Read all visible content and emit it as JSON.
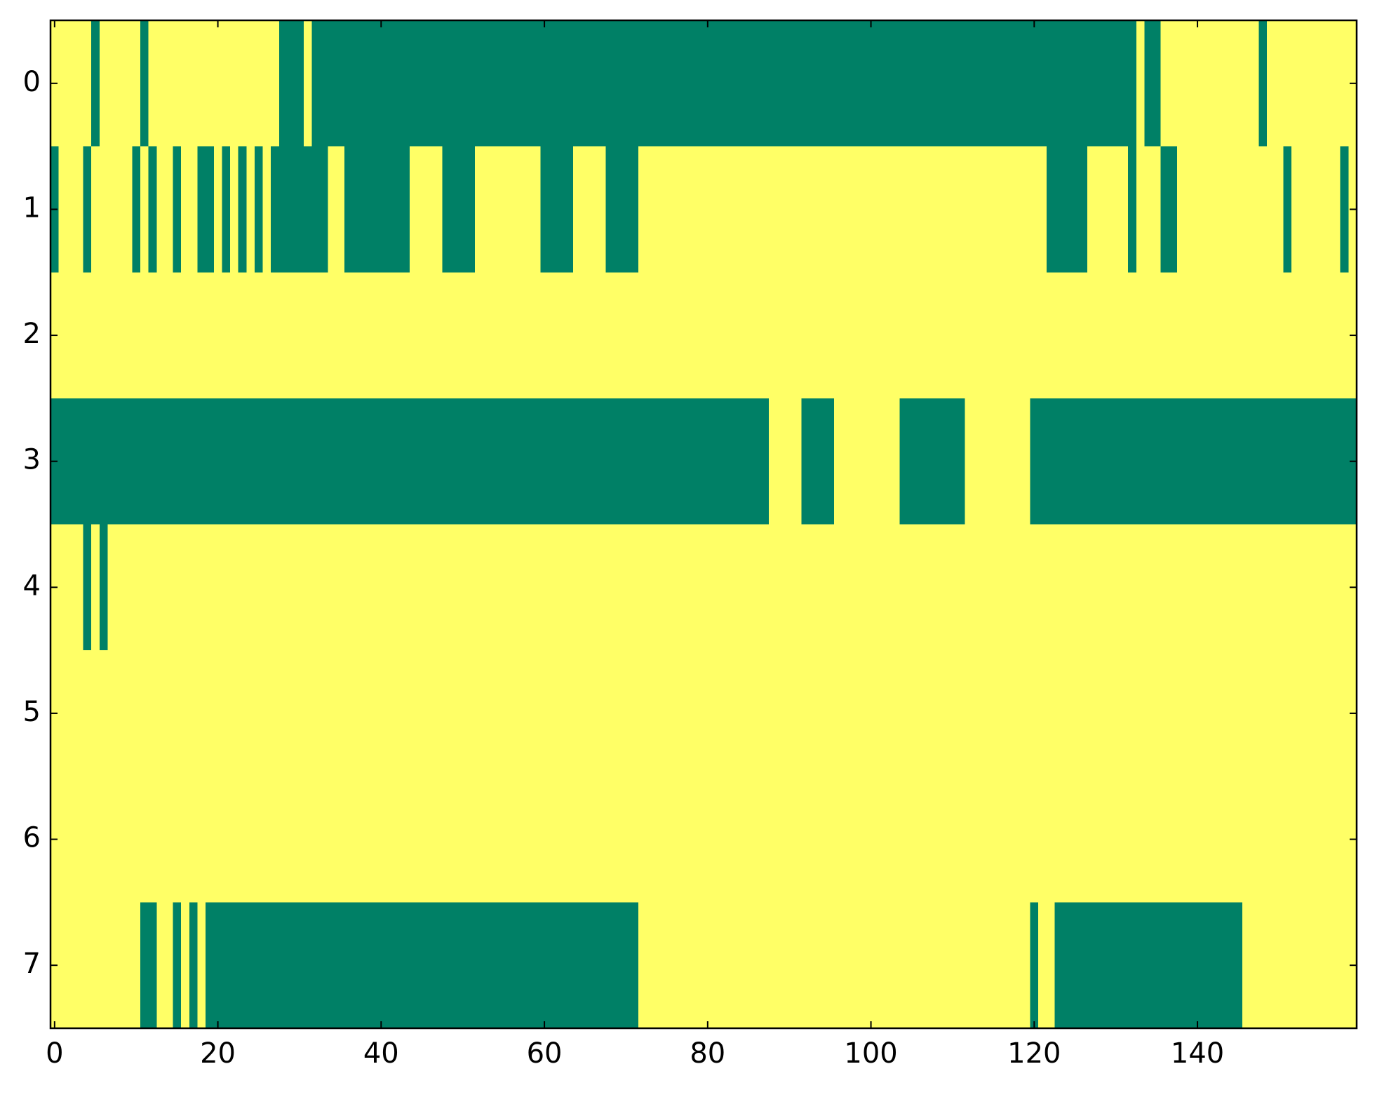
{
  "chart_data": {
    "type": "heatmap",
    "colors": [
      "#008066",
      "#ffff66"
    ],
    "xlim": [
      -0.5,
      159.5
    ],
    "ylim": [
      7.5,
      -0.5
    ],
    "xticks": [
      0,
      20,
      40,
      60,
      80,
      100,
      120,
      140
    ],
    "yticks": [
      0,
      1,
      2,
      3,
      4,
      5,
      6,
      7
    ],
    "values": [
      [
        1,
        1,
        1,
        1,
        1,
        0,
        1,
        1,
        1,
        1,
        1,
        0,
        1,
        1,
        1,
        1,
        1,
        1,
        1,
        1,
        1,
        1,
        1,
        1,
        1,
        1,
        1,
        1,
        0,
        0,
        0,
        1,
        0,
        0,
        0,
        0,
        0,
        0,
        0,
        0,
        0,
        0,
        0,
        0,
        0,
        0,
        0,
        0,
        0,
        0,
        0,
        0,
        0,
        0,
        0,
        0,
        0,
        0,
        0,
        0,
        0,
        0,
        0,
        0,
        0,
        0,
        0,
        0,
        0,
        0,
        0,
        0,
        0,
        0,
        0,
        0,
        0,
        0,
        0,
        0,
        0,
        0,
        0,
        0,
        0,
        0,
        0,
        0,
        0,
        0,
        0,
        0,
        0,
        0,
        0,
        0,
        0,
        0,
        0,
        0,
        0,
        0,
        0,
        0,
        0,
        0,
        0,
        0,
        0,
        0,
        0,
        0,
        0,
        0,
        0,
        0,
        0,
        0,
        0,
        0,
        0,
        0,
        0,
        0,
        0,
        0,
        0,
        0,
        0,
        0,
        0,
        0,
        0,
        1,
        0,
        0,
        1,
        1,
        1,
        1,
        1,
        1,
        1,
        1,
        1,
        1,
        1,
        1,
        0,
        1,
        1,
        1,
        1,
        1,
        1,
        1,
        1,
        1,
        1,
        1
      ],
      [
        0,
        1,
        1,
        1,
        0,
        1,
        1,
        1,
        1,
        1,
        0,
        1,
        0,
        1,
        1,
        0,
        1,
        1,
        0,
        0,
        1,
        0,
        1,
        0,
        1,
        0,
        1,
        0,
        0,
        0,
        0,
        0,
        0,
        0,
        1,
        1,
        0,
        0,
        0,
        0,
        0,
        0,
        0,
        0,
        1,
        1,
        1,
        1,
        0,
        0,
        0,
        0,
        1,
        1,
        1,
        1,
        1,
        1,
        1,
        1,
        0,
        0,
        0,
        0,
        1,
        1,
        1,
        1,
        0,
        0,
        0,
        0,
        1,
        1,
        1,
        1,
        1,
        1,
        1,
        1,
        1,
        1,
        1,
        1,
        1,
        1,
        1,
        1,
        1,
        1,
        1,
        1,
        1,
        1,
        1,
        1,
        1,
        1,
        1,
        1,
        1,
        1,
        1,
        1,
        1,
        1,
        1,
        1,
        1,
        1,
        1,
        1,
        1,
        1,
        1,
        1,
        1,
        1,
        1,
        1,
        1,
        1,
        0,
        0,
        0,
        0,
        0,
        1,
        1,
        1,
        1,
        1,
        0,
        1,
        1,
        1,
        0,
        0,
        1,
        1,
        1,
        1,
        1,
        1,
        1,
        1,
        1,
        1,
        1,
        1,
        1,
        0,
        1,
        1,
        1,
        1,
        1,
        1,
        0,
        1
      ],
      [
        1,
        1,
        1,
        1,
        1,
        1,
        1,
        1,
        1,
        1,
        1,
        1,
        1,
        1,
        1,
        1,
        1,
        1,
        1,
        1,
        1,
        1,
        1,
        1,
        1,
        1,
        1,
        1,
        1,
        1,
        1,
        1,
        1,
        1,
        1,
        1,
        1,
        1,
        1,
        1,
        1,
        1,
        1,
        1,
        1,
        1,
        1,
        1,
        1,
        1,
        1,
        1,
        1,
        1,
        1,
        1,
        1,
        1,
        1,
        1,
        1,
        1,
        1,
        1,
        1,
        1,
        1,
        1,
        1,
        1,
        1,
        1,
        1,
        1,
        1,
        1,
        1,
        1,
        1,
        1,
        1,
        1,
        1,
        1,
        1,
        1,
        1,
        1,
        1,
        1,
        1,
        1,
        1,
        1,
        1,
        1,
        1,
        1,
        1,
        1,
        1,
        1,
        1,
        1,
        1,
        1,
        1,
        1,
        1,
        1,
        1,
        1,
        1,
        1,
        1,
        1,
        1,
        1,
        1,
        1,
        1,
        1,
        1,
        1,
        1,
        1,
        1,
        1,
        1,
        1,
        1,
        1,
        1,
        1,
        1,
        1,
        1,
        1,
        1,
        1,
        1,
        1,
        1,
        1,
        1,
        1,
        1,
        1,
        1,
        1,
        1,
        1,
        1,
        1,
        1,
        1,
        1,
        1,
        1,
        1
      ],
      [
        0,
        0,
        0,
        0,
        0,
        0,
        0,
        0,
        0,
        0,
        0,
        0,
        0,
        0,
        0,
        0,
        0,
        0,
        0,
        0,
        0,
        0,
        0,
        0,
        0,
        0,
        0,
        0,
        0,
        0,
        0,
        0,
        0,
        0,
        0,
        0,
        0,
        0,
        0,
        0,
        0,
        0,
        0,
        0,
        0,
        0,
        0,
        0,
        0,
        0,
        0,
        0,
        0,
        0,
        0,
        0,
        0,
        0,
        0,
        0,
        0,
        0,
        0,
        0,
        0,
        0,
        0,
        0,
        0,
        0,
        0,
        0,
        0,
        0,
        0,
        0,
        0,
        0,
        0,
        0,
        0,
        0,
        0,
        0,
        0,
        0,
        0,
        0,
        1,
        1,
        1,
        1,
        0,
        0,
        0,
        0,
        1,
        1,
        1,
        1,
        1,
        1,
        1,
        1,
        0,
        0,
        0,
        0,
        0,
        0,
        0,
        0,
        1,
        1,
        1,
        1,
        1,
        1,
        1,
        1,
        0,
        0,
        0,
        0,
        0,
        0,
        0,
        0,
        0,
        0,
        0,
        0,
        0,
        0,
        0,
        0,
        0,
        0,
        0,
        0,
        0,
        0,
        0,
        0,
        0,
        0,
        0,
        0,
        0,
        0,
        0,
        0,
        0,
        0,
        0,
        0,
        0,
        0,
        0,
        0
      ],
      [
        1,
        1,
        1,
        1,
        0,
        1,
        0,
        1,
        1,
        1,
        1,
        1,
        1,
        1,
        1,
        1,
        1,
        1,
        1,
        1,
        1,
        1,
        1,
        1,
        1,
        1,
        1,
        1,
        1,
        1,
        1,
        1,
        1,
        1,
        1,
        1,
        1,
        1,
        1,
        1,
        1,
        1,
        1,
        1,
        1,
        1,
        1,
        1,
        1,
        1,
        1,
        1,
        1,
        1,
        1,
        1,
        1,
        1,
        1,
        1,
        1,
        1,
        1,
        1,
        1,
        1,
        1,
        1,
        1,
        1,
        1,
        1,
        1,
        1,
        1,
        1,
        1,
        1,
        1,
        1,
        1,
        1,
        1,
        1,
        1,
        1,
        1,
        1,
        1,
        1,
        1,
        1,
        1,
        1,
        1,
        1,
        1,
        1,
        1,
        1,
        1,
        1,
        1,
        1,
        1,
        1,
        1,
        1,
        1,
        1,
        1,
        1,
        1,
        1,
        1,
        1,
        1,
        1,
        1,
        1,
        1,
        1,
        1,
        1,
        1,
        1,
        1,
        1,
        1,
        1,
        1,
        1,
        1,
        1,
        1,
        1,
        1,
        1,
        1,
        1,
        1,
        1,
        1,
        1,
        1,
        1,
        1,
        1,
        1,
        1,
        1,
        1,
        1,
        1,
        1,
        1,
        1,
        1,
        1,
        1
      ],
      [
        1,
        1,
        1,
        1,
        1,
        1,
        1,
        1,
        1,
        1,
        1,
        1,
        1,
        1,
        1,
        1,
        1,
        1,
        1,
        1,
        1,
        1,
        1,
        1,
        1,
        1,
        1,
        1,
        1,
        1,
        1,
        1,
        1,
        1,
        1,
        1,
        1,
        1,
        1,
        1,
        1,
        1,
        1,
        1,
        1,
        1,
        1,
        1,
        1,
        1,
        1,
        1,
        1,
        1,
        1,
        1,
        1,
        1,
        1,
        1,
        1,
        1,
        1,
        1,
        1,
        1,
        1,
        1,
        1,
        1,
        1,
        1,
        1,
        1,
        1,
        1,
        1,
        1,
        1,
        1,
        1,
        1,
        1,
        1,
        1,
        1,
        1,
        1,
        1,
        1,
        1,
        1,
        1,
        1,
        1,
        1,
        1,
        1,
        1,
        1,
        1,
        1,
        1,
        1,
        1,
        1,
        1,
        1,
        1,
        1,
        1,
        1,
        1,
        1,
        1,
        1,
        1,
        1,
        1,
        1,
        1,
        1,
        1,
        1,
        1,
        1,
        1,
        1,
        1,
        1,
        1,
        1,
        1,
        1,
        1,
        1,
        1,
        1,
        1,
        1,
        1,
        1,
        1,
        1,
        1,
        1,
        1,
        1,
        1,
        1,
        1,
        1,
        1,
        1,
        1,
        1,
        1,
        1,
        1,
        1
      ],
      [
        1,
        1,
        1,
        1,
        1,
        1,
        1,
        1,
        1,
        1,
        1,
        1,
        1,
        1,
        1,
        1,
        1,
        1,
        1,
        1,
        1,
        1,
        1,
        1,
        1,
        1,
        1,
        1,
        1,
        1,
        1,
        1,
        1,
        1,
        1,
        1,
        1,
        1,
        1,
        1,
        1,
        1,
        1,
        1,
        1,
        1,
        1,
        1,
        1,
        1,
        1,
        1,
        1,
        1,
        1,
        1,
        1,
        1,
        1,
        1,
        1,
        1,
        1,
        1,
        1,
        1,
        1,
        1,
        1,
        1,
        1,
        1,
        1,
        1,
        1,
        1,
        1,
        1,
        1,
        1,
        1,
        1,
        1,
        1,
        1,
        1,
        1,
        1,
        1,
        1,
        1,
        1,
        1,
        1,
        1,
        1,
        1,
        1,
        1,
        1,
        1,
        1,
        1,
        1,
        1,
        1,
        1,
        1,
        1,
        1,
        1,
        1,
        1,
        1,
        1,
        1,
        1,
        1,
        1,
        1,
        1,
        1,
        1,
        1,
        1,
        1,
        1,
        1,
        1,
        1,
        1,
        1,
        1,
        1,
        1,
        1,
        1,
        1,
        1,
        1,
        1,
        1,
        1,
        1,
        1,
        1,
        1,
        1,
        1,
        1,
        1,
        1,
        1,
        1,
        1,
        1,
        1,
        1,
        1,
        1
      ],
      [
        1,
        1,
        1,
        1,
        1,
        1,
        1,
        1,
        1,
        1,
        1,
        0,
        0,
        1,
        1,
        0,
        1,
        0,
        1,
        0,
        0,
        0,
        0,
        0,
        0,
        0,
        0,
        0,
        0,
        0,
        0,
        0,
        0,
        0,
        0,
        0,
        0,
        0,
        0,
        0,
        0,
        0,
        0,
        0,
        0,
        0,
        0,
        0,
        0,
        0,
        0,
        0,
        0,
        0,
        0,
        0,
        0,
        0,
        0,
        0,
        0,
        0,
        0,
        0,
        0,
        0,
        0,
        0,
        0,
        0,
        0,
        0,
        1,
        1,
        1,
        1,
        1,
        1,
        1,
        1,
        1,
        1,
        1,
        1,
        1,
        1,
        1,
        1,
        1,
        1,
        1,
        1,
        1,
        1,
        1,
        1,
        1,
        1,
        1,
        1,
        1,
        1,
        1,
        1,
        1,
        1,
        1,
        1,
        1,
        1,
        1,
        1,
        1,
        1,
        1,
        1,
        1,
        1,
        1,
        1,
        0,
        1,
        1,
        0,
        0,
        0,
        0,
        0,
        0,
        0,
        0,
        0,
        0,
        0,
        0,
        0,
        0,
        0,
        0,
        0,
        0,
        0,
        0,
        0,
        0,
        0,
        1,
        1,
        1,
        1,
        1,
        1,
        1,
        1,
        1,
        1,
        1,
        1,
        1,
        1
      ]
    ]
  }
}
